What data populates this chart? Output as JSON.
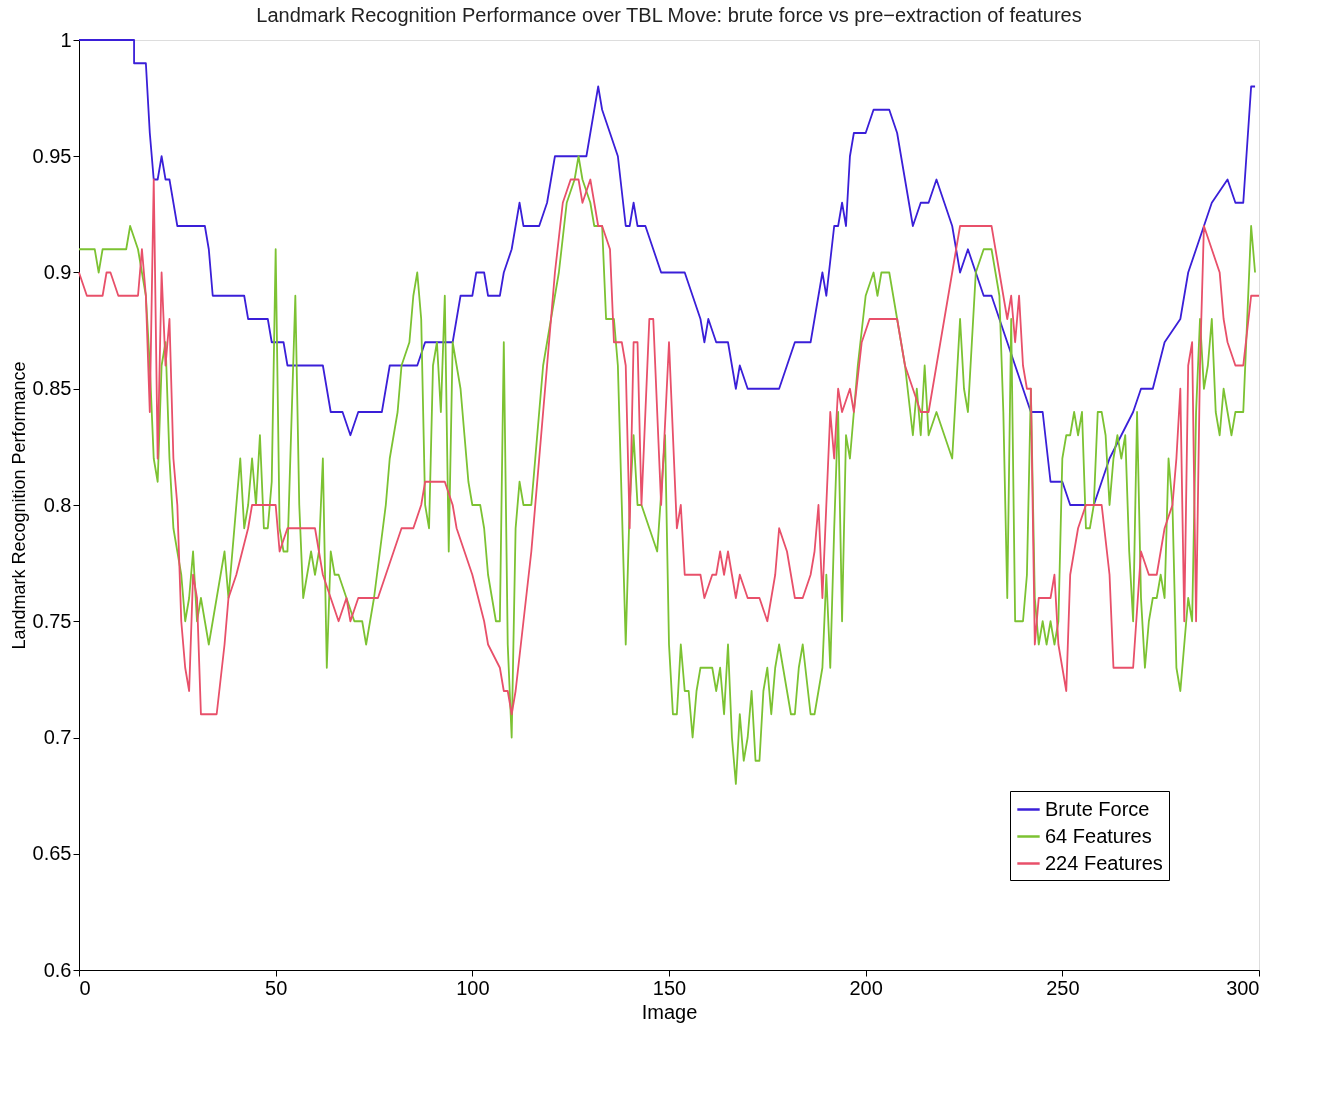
{
  "chart_data": {
    "type": "line",
    "title": "Landmark Recognition Performance over TBL Move: brute force vs pre−extraction of features",
    "xlabel": "Image",
    "ylabel": "Landmark Recognition Performance",
    "xlim": [
      0,
      300
    ],
    "xticks": [
      0,
      50,
      100,
      150,
      200,
      250,
      300
    ],
    "ylim": [
      0.6,
      1
    ],
    "yticks": [
      0.6,
      0.65,
      0.7,
      0.75,
      0.8,
      0.85,
      0.9,
      0.95,
      1
    ],
    "grid": false,
    "legend": "bottom right",
    "line_style": "solid",
    "marker": "none",
    "series": [
      {
        "name": "Brute Force",
        "color": "#3a1fd8",
        "x": [
          0,
          3,
          14,
          14,
          17,
          18,
          19,
          20,
          21,
          22,
          23,
          25,
          32,
          33,
          34,
          42,
          43,
          48,
          49,
          52,
          53,
          62,
          64,
          67,
          69,
          71,
          77,
          79,
          86,
          88,
          95,
          97,
          100,
          101,
          103,
          104,
          107,
          108,
          110,
          111,
          112,
          113,
          117,
          119,
          120,
          121,
          123,
          129,
          132,
          133,
          135,
          137,
          139,
          140,
          141,
          142,
          144,
          146,
          148,
          154,
          156,
          158,
          159,
          160,
          162,
          165,
          167,
          168,
          170,
          178,
          180,
          182,
          186,
          189,
          190,
          192,
          193,
          194,
          195,
          196,
          197,
          200,
          202,
          206,
          208,
          210,
          212,
          214,
          216,
          218,
          220,
          222,
          224,
          226,
          228,
          230,
          232,
          234,
          236,
          238,
          240,
          242,
          245,
          247,
          250,
          252,
          258,
          260,
          262,
          265,
          268,
          270,
          273,
          276,
          280,
          282,
          284,
          286,
          288,
          292,
          294,
          296,
          298,
          299
        ],
        "values": [
          1.0,
          1.0,
          1.0,
          0.99,
          0.99,
          0.96,
          0.94,
          0.94,
          0.95,
          0.94,
          0.94,
          0.92,
          0.92,
          0.91,
          0.89,
          0.89,
          0.88,
          0.88,
          0.87,
          0.87,
          0.86,
          0.86,
          0.84,
          0.84,
          0.83,
          0.84,
          0.84,
          0.86,
          0.86,
          0.87,
          0.87,
          0.89,
          0.89,
          0.9,
          0.9,
          0.89,
          0.89,
          0.9,
          0.91,
          0.92,
          0.93,
          0.92,
          0.92,
          0.93,
          0.94,
          0.95,
          0.95,
          0.95,
          0.98,
          0.97,
          0.96,
          0.95,
          0.92,
          0.92,
          0.93,
          0.92,
          0.92,
          0.91,
          0.9,
          0.9,
          0.89,
          0.88,
          0.87,
          0.88,
          0.87,
          0.87,
          0.85,
          0.86,
          0.85,
          0.85,
          0.86,
          0.87,
          0.87,
          0.9,
          0.89,
          0.92,
          0.92,
          0.93,
          0.92,
          0.95,
          0.96,
          0.96,
          0.97,
          0.97,
          0.96,
          0.94,
          0.92,
          0.93,
          0.93,
          0.94,
          0.93,
          0.92,
          0.9,
          0.91,
          0.9,
          0.89,
          0.89,
          0.88,
          0.87,
          0.86,
          0.85,
          0.84,
          0.84,
          0.81,
          0.81,
          0.8,
          0.8,
          0.81,
          0.82,
          0.83,
          0.84,
          0.85,
          0.85,
          0.87,
          0.88,
          0.9,
          0.91,
          0.92,
          0.93,
          0.94,
          0.93,
          0.93,
          0.98,
          0.98
        ]
      },
      {
        "name": "64 Features",
        "color": "#7cc232",
        "x": [
          0,
          4,
          5,
          6,
          12,
          13,
          15,
          17,
          18,
          19,
          20,
          21,
          22,
          23,
          24,
          25,
          26,
          27,
          28,
          29,
          30,
          31,
          32,
          33,
          35,
          37,
          38,
          40,
          41,
          42,
          43,
          44,
          45,
          46,
          47,
          48,
          49,
          50,
          51,
          52,
          53,
          55,
          56,
          57,
          58,
          59,
          60,
          61,
          62,
          63,
          64,
          65,
          66,
          68,
          70,
          72,
          73,
          75,
          78,
          79,
          81,
          82,
          84,
          85,
          86,
          87,
          88,
          89,
          90,
          91,
          92,
          93,
          94,
          95,
          96,
          97,
          98,
          99,
          100,
          101,
          102,
          103,
          104,
          105,
          106,
          107,
          108,
          109,
          110,
          111,
          112,
          113,
          115,
          116,
          118,
          120,
          122,
          124,
          126,
          127,
          128,
          130,
          131,
          133,
          134,
          136,
          137,
          138,
          139,
          140,
          141,
          142,
          143,
          145,
          147,
          149,
          150,
          151,
          152,
          153,
          154,
          155,
          156,
          157,
          158,
          161,
          162,
          163,
          164,
          165,
          166,
          167,
          168,
          169,
          170,
          171,
          172,
          173,
          174,
          175,
          176,
          177,
          178,
          179,
          180,
          181,
          182,
          183,
          184,
          186,
          187,
          188,
          189,
          190,
          191,
          192,
          193,
          194,
          195,
          196,
          198,
          200,
          202,
          203,
          204,
          206,
          208,
          210,
          212,
          213,
          214,
          215,
          216,
          218,
          220,
          222,
          223,
          224,
          225,
          226,
          227,
          228,
          230,
          232,
          233,
          234,
          235,
          236,
          237,
          238,
          240,
          241,
          242,
          243,
          244,
          245,
          246,
          247,
          248,
          249,
          250,
          251,
          252,
          253,
          254,
          255,
          256,
          257,
          258,
          259,
          260,
          261,
          262,
          263,
          264,
          265,
          266,
          267,
          268,
          269,
          270,
          271,
          272,
          273,
          274,
          275,
          276,
          277,
          278,
          279,
          280,
          281,
          282,
          283,
          284,
          285,
          286,
          287,
          288,
          289,
          290,
          291,
          292,
          293,
          294,
          296,
          298,
          299
        ],
        "values": [
          0.91,
          0.91,
          0.9,
          0.91,
          0.91,
          0.92,
          0.91,
          0.89,
          0.86,
          0.82,
          0.81,
          0.86,
          0.87,
          0.82,
          0.79,
          0.78,
          0.77,
          0.75,
          0.76,
          0.78,
          0.75,
          0.76,
          0.75,
          0.74,
          0.76,
          0.78,
          0.76,
          0.8,
          0.82,
          0.79,
          0.8,
          0.82,
          0.8,
          0.83,
          0.79,
          0.79,
          0.81,
          0.91,
          0.79,
          0.78,
          0.78,
          0.89,
          0.8,
          0.76,
          0.77,
          0.78,
          0.77,
          0.78,
          0.82,
          0.73,
          0.78,
          0.77,
          0.77,
          0.76,
          0.75,
          0.75,
          0.74,
          0.76,
          0.8,
          0.82,
          0.84,
          0.86,
          0.87,
          0.89,
          0.9,
          0.88,
          0.8,
          0.79,
          0.86,
          0.87,
          0.84,
          0.89,
          0.78,
          0.87,
          0.86,
          0.85,
          0.83,
          0.81,
          0.8,
          0.8,
          0.8,
          0.79,
          0.77,
          0.76,
          0.75,
          0.75,
          0.87,
          0.74,
          0.7,
          0.79,
          0.81,
          0.8,
          0.8,
          0.82,
          0.86,
          0.88,
          0.9,
          0.93,
          0.94,
          0.95,
          0.94,
          0.93,
          0.92,
          0.92,
          0.88,
          0.88,
          0.86,
          0.8,
          0.74,
          0.8,
          0.83,
          0.8,
          0.8,
          0.79,
          0.78,
          0.83,
          0.74,
          0.71,
          0.71,
          0.74,
          0.72,
          0.72,
          0.7,
          0.72,
          0.73,
          0.73,
          0.72,
          0.73,
          0.71,
          0.74,
          0.7,
          0.68,
          0.71,
          0.69,
          0.7,
          0.72,
          0.69,
          0.69,
          0.72,
          0.73,
          0.71,
          0.73,
          0.74,
          0.73,
          0.72,
          0.71,
          0.71,
          0.73,
          0.74,
          0.71,
          0.71,
          0.72,
          0.73,
          0.77,
          0.73,
          0.79,
          0.84,
          0.75,
          0.83,
          0.82,
          0.86,
          0.89,
          0.9,
          0.89,
          0.9,
          0.9,
          0.88,
          0.86,
          0.83,
          0.85,
          0.83,
          0.86,
          0.83,
          0.84,
          0.83,
          0.82,
          0.85,
          0.88,
          0.85,
          0.84,
          0.87,
          0.9,
          0.91,
          0.91,
          0.9,
          0.89,
          0.84,
          0.76,
          0.88,
          0.75,
          0.75,
          0.77,
          0.85,
          0.76,
          0.74,
          0.75,
          0.74,
          0.75,
          0.74,
          0.75,
          0.82,
          0.83,
          0.83,
          0.84,
          0.83,
          0.84,
          0.79,
          0.79,
          0.8,
          0.84,
          0.84,
          0.83,
          0.8,
          0.82,
          0.83,
          0.82,
          0.83,
          0.78,
          0.75,
          0.84,
          0.76,
          0.73,
          0.75,
          0.76,
          0.76,
          0.77,
          0.76,
          0.82,
          0.8,
          0.73,
          0.72,
          0.74,
          0.76,
          0.75,
          0.84,
          0.88,
          0.85,
          0.86,
          0.88,
          0.84,
          0.83,
          0.85,
          0.84,
          0.83,
          0.84,
          0.84,
          0.92,
          0.9
        ]
      },
      {
        "name": "224 Features",
        "color": "#e8506a",
        "x": [
          0,
          2,
          6,
          7,
          8,
          10,
          15,
          16,
          17,
          18,
          19,
          20,
          21,
          22,
          23,
          24,
          25,
          26,
          27,
          28,
          29,
          30,
          31,
          35,
          37,
          38,
          40,
          43,
          44,
          50,
          51,
          53,
          60,
          62,
          64,
          66,
          68,
          69,
          71,
          76,
          78,
          80,
          82,
          85,
          87,
          88,
          93,
          95,
          96,
          98,
          100,
          103,
          104,
          107,
          108,
          109,
          110,
          111,
          113,
          115,
          117,
          119,
          121,
          123,
          125,
          127,
          128,
          130,
          132,
          133,
          135,
          136,
          138,
          139,
          140,
          141,
          142,
          143,
          145,
          146,
          148,
          150,
          152,
          153,
          154,
          158,
          159,
          161,
          162,
          163,
          164,
          165,
          166,
          167,
          168,
          170,
          173,
          175,
          177,
          178,
          180,
          182,
          184,
          186,
          187,
          188,
          189,
          191,
          192,
          193,
          194,
          196,
          197,
          199,
          201,
          208,
          210,
          212,
          214,
          216,
          218,
          220,
          222,
          224,
          232,
          234,
          236,
          237,
          238,
          239,
          240,
          241,
          242,
          243,
          244,
          247,
          248,
          249,
          250,
          251,
          252,
          254,
          256,
          260,
          262,
          263,
          268,
          270,
          272,
          274,
          276,
          278,
          279,
          280,
          281,
          282,
          283,
          284,
          285,
          286,
          288,
          290,
          291,
          292,
          294,
          296,
          298,
          300
        ],
        "values": [
          0.9,
          0.89,
          0.89,
          0.9,
          0.9,
          0.89,
          0.89,
          0.91,
          0.89,
          0.84,
          0.94,
          0.82,
          0.9,
          0.86,
          0.88,
          0.82,
          0.8,
          0.75,
          0.73,
          0.72,
          0.77,
          0.76,
          0.71,
          0.71,
          0.74,
          0.76,
          0.77,
          0.79,
          0.8,
          0.8,
          0.78,
          0.79,
          0.79,
          0.77,
          0.76,
          0.75,
          0.76,
          0.75,
          0.76,
          0.76,
          0.77,
          0.78,
          0.79,
          0.79,
          0.8,
          0.81,
          0.81,
          0.8,
          0.79,
          0.78,
          0.77,
          0.75,
          0.74,
          0.73,
          0.72,
          0.72,
          0.71,
          0.72,
          0.75,
          0.78,
          0.82,
          0.86,
          0.9,
          0.93,
          0.94,
          0.94,
          0.93,
          0.94,
          0.92,
          0.92,
          0.91,
          0.87,
          0.87,
          0.86,
          0.79,
          0.87,
          0.87,
          0.8,
          0.88,
          0.88,
          0.8,
          0.87,
          0.79,
          0.8,
          0.77,
          0.77,
          0.76,
          0.77,
          0.77,
          0.78,
          0.77,
          0.78,
          0.77,
          0.76,
          0.77,
          0.76,
          0.76,
          0.75,
          0.77,
          0.79,
          0.78,
          0.76,
          0.76,
          0.77,
          0.78,
          0.8,
          0.76,
          0.84,
          0.82,
          0.85,
          0.84,
          0.85,
          0.84,
          0.87,
          0.88,
          0.88,
          0.86,
          0.85,
          0.84,
          0.84,
          0.86,
          0.88,
          0.9,
          0.92,
          0.92,
          0.9,
          0.88,
          0.89,
          0.87,
          0.89,
          0.86,
          0.85,
          0.85,
          0.74,
          0.76,
          0.76,
          0.77,
          0.74,
          0.73,
          0.72,
          0.77,
          0.79,
          0.8,
          0.8,
          0.77,
          0.73,
          0.73,
          0.78,
          0.77,
          0.77,
          0.79,
          0.8,
          0.82,
          0.85,
          0.75,
          0.86,
          0.87,
          0.75,
          0.86,
          0.92,
          0.91,
          0.9,
          0.88,
          0.87,
          0.86,
          0.86,
          0.89,
          0.89
        ]
      }
    ]
  }
}
